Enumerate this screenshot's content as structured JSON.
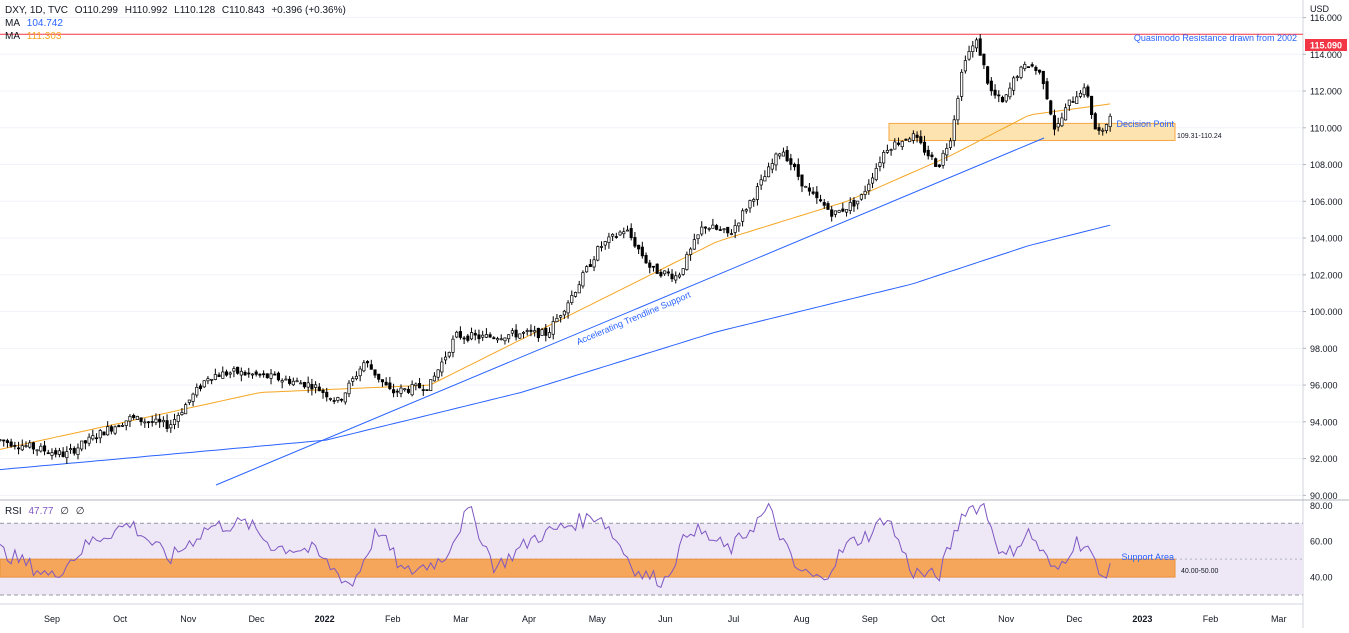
{
  "header": {
    "symbol_line": "DXY, 1D, TVC",
    "open": "O110.299",
    "high": "H110.992",
    "low": "L110.128",
    "close": "C110.843",
    "change": "+0.396 (+0.36%)",
    "ma1_label": "MA",
    "ma1_value": "104.742",
    "ma2_label": "MA",
    "ma2_value": "111.303",
    "rsi_label": "RSI",
    "rsi_value": "47.77",
    "rsi_extra1": "∅",
    "rsi_extra2": "∅"
  },
  "annotations": {
    "currency": "USD",
    "resistance_label": "Quasimodo Resistance drawn from 2002",
    "resistance_price": "115.090",
    "decision_point": "Decision Point",
    "zone_label": "109.31-110.24",
    "trendline_label": "Accelerating Trendline Support",
    "support_area": "Support Area",
    "rsi_zone_label": "40.00-50.00"
  },
  "colors": {
    "up_candle": "#ffffff",
    "down_candle": "#000000",
    "ma_fast": "#f5a623",
    "ma_slow": "#2962ff",
    "trendline": "#2962ff",
    "resistance": "#f23645",
    "zone_fill": "#fde3b0",
    "zone_border": "#f7a642",
    "rsi_line": "#7e57c2",
    "rsi_band": "#ede7f6",
    "rsi_zone": "#f5a65b"
  },
  "chart_data": {
    "type": "candlestick",
    "symbol": "DXY",
    "timeframe": "1D",
    "price_axis": {
      "ticks": [
        "116.000",
        "114.000",
        "112.000",
        "110.000",
        "108.000",
        "106.000",
        "104.000",
        "102.000",
        "100.000",
        "98.000",
        "96.000",
        "94.000",
        "92.000",
        "90.000"
      ],
      "ylim": [
        89.8,
        116.9
      ]
    },
    "time_axis": {
      "labels": [
        "Sep",
        "Oct",
        "Nov",
        "Dec",
        "2022",
        "Feb",
        "Mar",
        "Apr",
        "May",
        "Jun",
        "Jul",
        "Aug",
        "Sep",
        "Oct",
        "Nov",
        "Dec",
        "2023",
        "Feb",
        "Mar"
      ]
    },
    "price_anchors": [
      [
        0,
        93.0
      ],
      [
        0.05,
        92.2
      ],
      [
        0.08,
        93.5
      ],
      [
        0.1,
        94.2
      ],
      [
        0.13,
        93.8
      ],
      [
        0.16,
        96.5
      ],
      [
        0.18,
        96.7
      ],
      [
        0.21,
        96.4
      ],
      [
        0.24,
        96.0
      ],
      [
        0.26,
        95.1
      ],
      [
        0.28,
        97.3
      ],
      [
        0.3,
        95.6
      ],
      [
        0.33,
        96.0
      ],
      [
        0.35,
        98.7
      ],
      [
        0.37,
        98.6
      ],
      [
        0.4,
        98.8
      ],
      [
        0.42,
        98.8
      ],
      [
        0.44,
        101.0
      ],
      [
        0.46,
        103.5
      ],
      [
        0.48,
        104.5
      ],
      [
        0.5,
        102.3
      ],
      [
        0.52,
        101.9
      ],
      [
        0.54,
        104.7
      ],
      [
        0.56,
        104.2
      ],
      [
        0.58,
        106.5
      ],
      [
        0.6,
        108.9
      ],
      [
        0.62,
        106.5
      ],
      [
        0.64,
        105.3
      ],
      [
        0.66,
        106.1
      ],
      [
        0.68,
        108.9
      ],
      [
        0.7,
        109.6
      ],
      [
        0.72,
        107.9
      ],
      [
        0.73,
        109.6
      ],
      [
        0.74,
        113.8
      ],
      [
        0.75,
        114.7
      ],
      [
        0.76,
        112.0
      ],
      [
        0.77,
        111.3
      ],
      [
        0.78,
        112.9
      ],
      [
        0.79,
        113.5
      ],
      [
        0.8,
        112.8
      ],
      [
        0.81,
        109.8
      ],
      [
        0.82,
        111.3
      ],
      [
        0.83,
        112.1
      ],
      [
        0.835,
        111.8
      ],
      [
        0.84,
        110.0
      ],
      [
        0.846,
        109.6
      ],
      [
        0.852,
        110.84
      ]
    ],
    "ma_fast_anchors": [
      [
        0,
        92.5
      ],
      [
        0.2,
        95.6
      ],
      [
        0.33,
        96.0
      ],
      [
        0.55,
        103.8
      ],
      [
        0.65,
        106.0
      ],
      [
        0.73,
        108.5
      ],
      [
        0.79,
        110.7
      ],
      [
        0.852,
        111.3
      ]
    ],
    "ma_slow_anchors": [
      [
        0,
        91.4
      ],
      [
        0.25,
        93.0
      ],
      [
        0.4,
        95.6
      ],
      [
        0.55,
        98.9
      ],
      [
        0.7,
        101.5
      ],
      [
        0.79,
        103.6
      ],
      [
        0.852,
        104.7
      ]
    ],
    "levels": {
      "resistance": 115.09,
      "zone_low": 109.31,
      "zone_high": 110.24
    },
    "rsi": {
      "ticks": [
        "80.00",
        "60.00",
        "40.00"
      ],
      "ylim": [
        25,
        83
      ],
      "upper_band": 70,
      "lower_band": 30,
      "zone": [
        40,
        50
      ],
      "last": 47.77,
      "anchors": [
        [
          0,
          55
        ],
        [
          0.04,
          40
        ],
        [
          0.07,
          60
        ],
        [
          0.1,
          70
        ],
        [
          0.13,
          50
        ],
        [
          0.16,
          68
        ],
        [
          0.19,
          70
        ],
        [
          0.21,
          57
        ],
        [
          0.24,
          55
        ],
        [
          0.27,
          35
        ],
        [
          0.29,
          67
        ],
        [
          0.31,
          42
        ],
        [
          0.34,
          50
        ],
        [
          0.36,
          78
        ],
        [
          0.38,
          45
        ],
        [
          0.41,
          62
        ],
        [
          0.44,
          70
        ],
        [
          0.46,
          75
        ],
        [
          0.49,
          42
        ],
        [
          0.51,
          38
        ],
        [
          0.53,
          68
        ],
        [
          0.56,
          55
        ],
        [
          0.59,
          78
        ],
        [
          0.61,
          45
        ],
        [
          0.63,
          38
        ],
        [
          0.65,
          58
        ],
        [
          0.67,
          65
        ],
        [
          0.68,
          75
        ],
        [
          0.7,
          43
        ],
        [
          0.72,
          40
        ],
        [
          0.74,
          78
        ],
        [
          0.755,
          80
        ],
        [
          0.77,
          50
        ],
        [
          0.79,
          65
        ],
        [
          0.81,
          42
        ],
        [
          0.825,
          60
        ],
        [
          0.835,
          57
        ],
        [
          0.845,
          38
        ],
        [
          0.852,
          47.77
        ]
      ]
    }
  }
}
